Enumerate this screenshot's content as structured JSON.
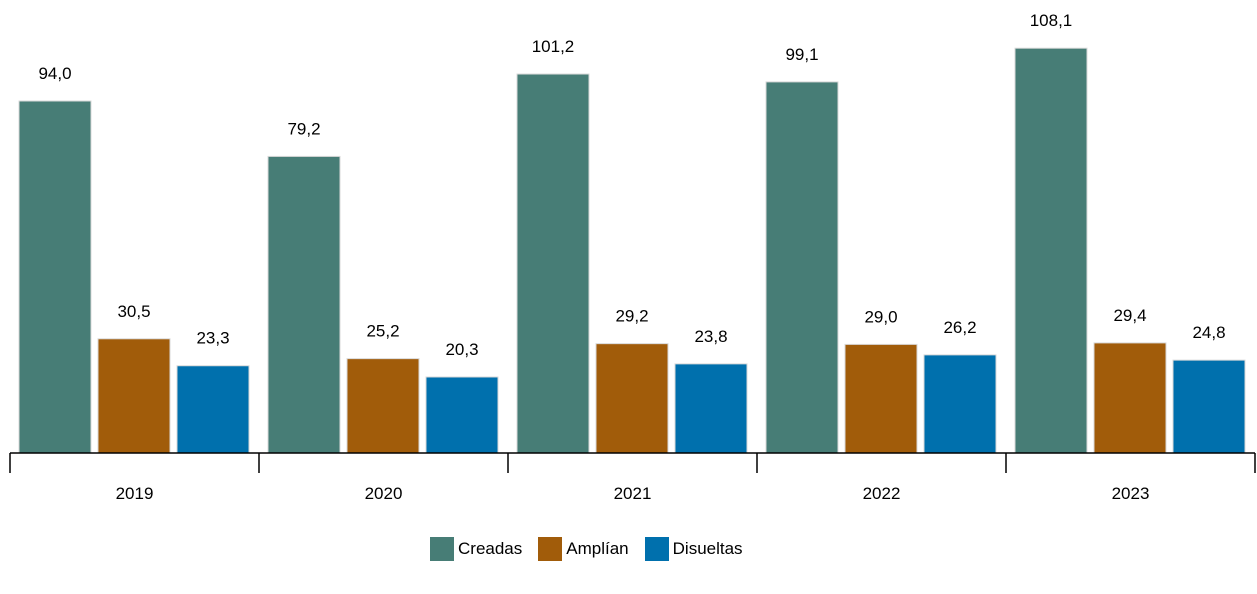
{
  "chart_data": {
    "type": "bar",
    "categories": [
      "2019",
      "2020",
      "2021",
      "2022",
      "2023"
    ],
    "series": [
      {
        "name": "Creadas",
        "color": "#477d76",
        "values": [
          94.0,
          79.2,
          101.2,
          99.1,
          108.1
        ],
        "labels": [
          "94,0",
          "79,2",
          "101,2",
          "99,1",
          "108,1"
        ]
      },
      {
        "name": "Amplían",
        "color": "#a15c0a",
        "values": [
          30.5,
          25.2,
          29.2,
          29.0,
          29.4
        ],
        "labels": [
          "30,5",
          "25,2",
          "29,2",
          "29,0",
          "29,4"
        ]
      },
      {
        "name": "Disueltas",
        "color": "#0070ad",
        "values": [
          23.3,
          20.3,
          23.8,
          26.2,
          24.8
        ],
        "labels": [
          "23,3",
          "20,3",
          "23,8",
          "26,2",
          "24,8"
        ]
      }
    ],
    "ylim": [
      0,
      120
    ],
    "grid": false,
    "legend_position": "bottom-center"
  }
}
